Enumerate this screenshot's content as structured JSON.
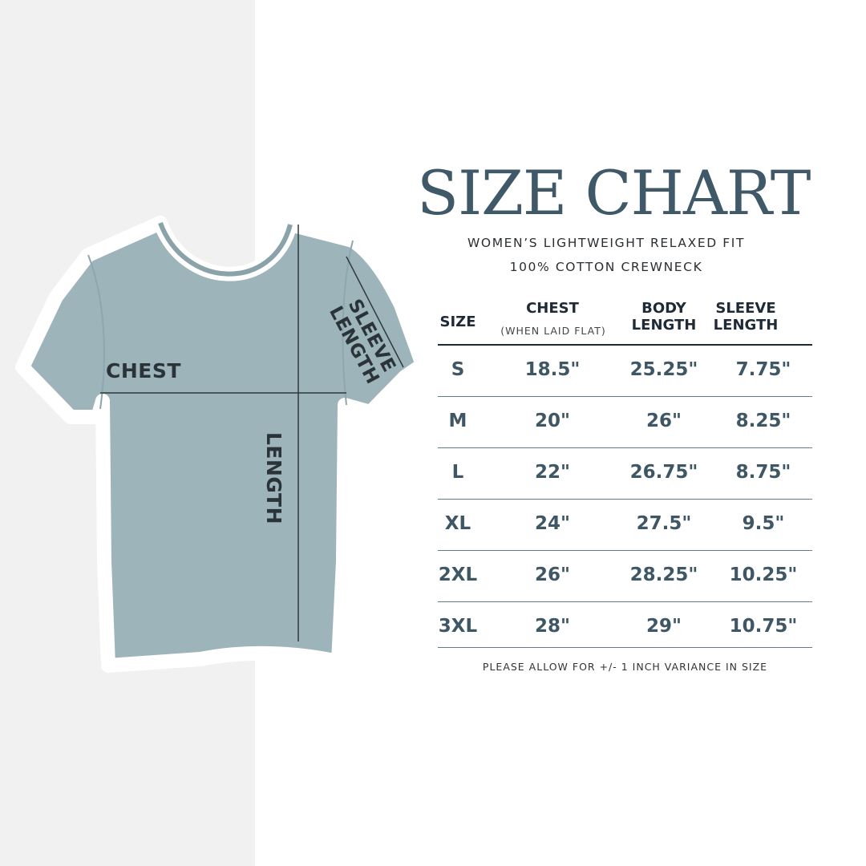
{
  "title": "SIZE CHART",
  "subtitle_line1": "WOMEN’S LIGHTWEIGHT RELAXED FIT",
  "subtitle_line2": "100% COTTON CREWNECK",
  "colors": {
    "title": "#3f5968",
    "shirt": "#9db4bb",
    "left_panel": "#f1f1f1",
    "values": "#3f5765"
  },
  "diagram_labels": {
    "chest": "CHEST",
    "sleeve_length_1": "SLEEVE",
    "sleeve_length_2": "LENGTH",
    "length": "LENGTH"
  },
  "table": {
    "headers": {
      "size": "SIZE",
      "chest": "CHEST",
      "chest_note": "(WHEN LAID FLAT)",
      "body_1": "BODY",
      "body_2": "LENGTH",
      "sleeve_1": "SLEEVE",
      "sleeve_2": "LENGTH"
    },
    "rows": [
      {
        "size": "S",
        "chest": "18.5\"",
        "body": "25.25\"",
        "sleeve": "7.75\""
      },
      {
        "size": "M",
        "chest": "20\"",
        "body": "26\"",
        "sleeve": "8.25\""
      },
      {
        "size": "L",
        "chest": "22\"",
        "body": "26.75\"",
        "sleeve": "8.75\""
      },
      {
        "size": "XL",
        "chest": "24\"",
        "body": "27.5\"",
        "sleeve": "9.5\""
      },
      {
        "size": "2XL",
        "chest": "26\"",
        "body": "28.25\"",
        "sleeve": "10.25\""
      },
      {
        "size": "3XL",
        "chest": "28\"",
        "body": "29\"",
        "sleeve": "10.75\""
      }
    ]
  },
  "note": "PLEASE ALLOW FOR +/- 1 INCH VARIANCE IN SIZE"
}
